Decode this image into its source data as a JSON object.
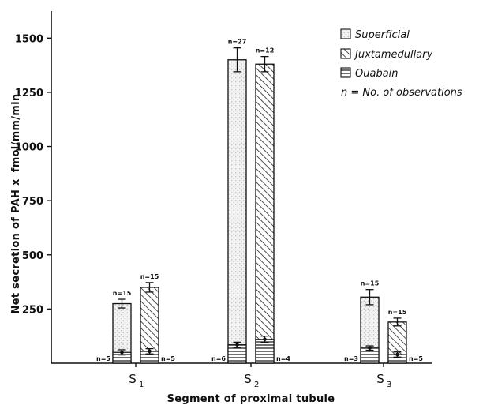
{
  "chart_data": {
    "type": "bar",
    "title": "",
    "xlabel": "Segment of proximal tubule",
    "ylabel_parts": [
      "Net secretion of PAH x",
      "fmol/mm/min"
    ],
    "ylim": [
      0,
      1625
    ],
    "yticks": [
      250,
      500,
      750,
      1000,
      1250,
      1500
    ],
    "grid": false,
    "legend_position": "top-right",
    "categories": [
      {
        "main": "S",
        "sub": "1"
      },
      {
        "main": "S",
        "sub": "2"
      },
      {
        "main": "S",
        "sub": "3"
      }
    ],
    "series": [
      {
        "name": "Superficial",
        "pattern": "dotted",
        "values": [
          275,
          1400,
          305
        ],
        "errors": [
          20,
          55,
          35
        ],
        "n_labels": [
          "n=15",
          "n=27",
          "n=15"
        ],
        "ouabain_values": [
          50,
          85,
          70
        ],
        "ouabain_errors": [
          12,
          12,
          10
        ],
        "ouabain_n_labels": [
          "n=5",
          "n=6",
          "n=3"
        ]
      },
      {
        "name": "Juxtamedullary",
        "pattern": "hatched",
        "values": [
          350,
          1380,
          190
        ],
        "errors": [
          22,
          35,
          18
        ],
        "n_labels": [
          "n=15",
          "n=12",
          "n=15"
        ],
        "ouabain_values": [
          55,
          110,
          40
        ],
        "ouabain_errors": [
          12,
          15,
          12
        ],
        "ouabain_n_labels": [
          "n=5",
          "n=4",
          "n=5"
        ]
      }
    ],
    "legend": [
      {
        "label": "Superficial",
        "pattern": "dotted"
      },
      {
        "label": "Juxtamedullary",
        "pattern": "hatched"
      },
      {
        "label": "Ouabain",
        "pattern": "horizontal"
      },
      {
        "label": "n = No. of observations",
        "pattern": "none"
      }
    ]
  }
}
